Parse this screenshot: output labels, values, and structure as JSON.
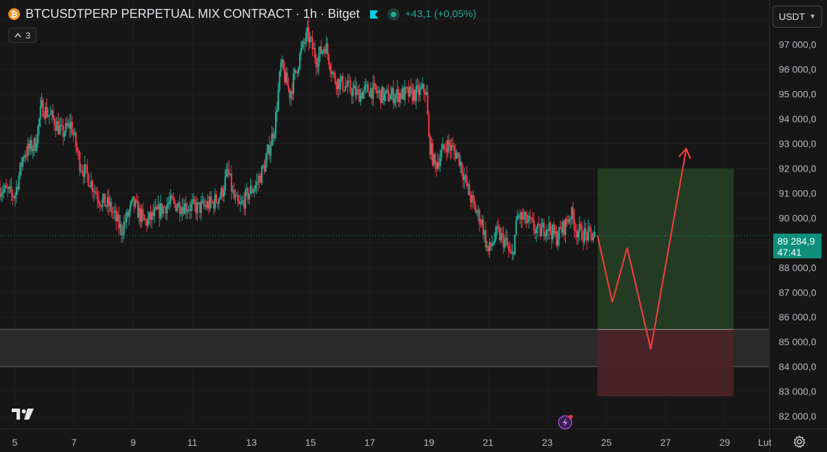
{
  "header": {
    "coin_glyph": "₿",
    "title": "BTCUSDTPERP PERPETUAL MIX CONTRACT · 1h · Bitget",
    "change": "+43,1 (+0,05%)"
  },
  "indicator_badge": {
    "count": "3"
  },
  "currency_select": {
    "value": "USDT"
  },
  "last_price": {
    "price": "89 284,9",
    "countdown": "47:41"
  },
  "x_extra_label": "Lut",
  "colors": {
    "background": "#161616",
    "up": "#22ab94",
    "down": "#f23645",
    "target_zone": "#233d23",
    "stop_zone": "#4a2328",
    "projection": "#ef3e3e",
    "support_band": "#2c2c2c"
  },
  "chart_data": {
    "type": "candlestick",
    "symbol": "BTCUSDTPERP",
    "interval": "1h",
    "exchange": "Bitget",
    "y_range": [
      81500,
      98800
    ],
    "x_range": [
      4.5,
      30.5
    ],
    "y_ticks": [
      82000,
      83000,
      84000,
      85000,
      86000,
      87000,
      88000,
      89000,
      90000,
      91000,
      92000,
      93000,
      94000,
      95000,
      96000,
      97000,
      98000
    ],
    "y_tick_labels": [
      "82 000,0",
      "83 000,0",
      "84 000,0",
      "85 000,0",
      "86 000,0",
      "87 000,0",
      "88 000,0",
      "",
      "90 000,0",
      "91 000,0",
      "92 000,0",
      "93 000,0",
      "94 000,0",
      "95 000,0",
      "96 000,0",
      "97 000,0",
      "98 000,0"
    ],
    "x_ticks": [
      5,
      7,
      9,
      11,
      13,
      15,
      17,
      19,
      21,
      23,
      25,
      27,
      29
    ],
    "x_tick_labels": [
      "5",
      "7",
      "9",
      "11",
      "13",
      "15",
      "17",
      "19",
      "21",
      "23",
      "25",
      "27",
      "29"
    ],
    "last_price": 89284.9,
    "price_path": [
      [
        4.5,
        91200
      ],
      [
        5.0,
        90900
      ],
      [
        5.3,
        92600
      ],
      [
        5.7,
        93000
      ],
      [
        5.9,
        94500
      ],
      [
        6.3,
        94000
      ],
      [
        6.6,
        93400
      ],
      [
        6.9,
        93800
      ],
      [
        7.2,
        92200
      ],
      [
        7.5,
        91600
      ],
      [
        7.9,
        90700
      ],
      [
        8.2,
        90500
      ],
      [
        8.6,
        89500
      ],
      [
        9.0,
        90600
      ],
      [
        9.4,
        89800
      ],
      [
        9.8,
        90200
      ],
      [
        10.2,
        90600
      ],
      [
        10.7,
        90500
      ],
      [
        11.2,
        90400
      ],
      [
        11.7,
        90600
      ],
      [
        12.0,
        91000
      ],
      [
        12.2,
        91900
      ],
      [
        12.4,
        90800
      ],
      [
        12.6,
        90400
      ],
      [
        12.9,
        91000
      ],
      [
        13.2,
        91400
      ],
      [
        13.5,
        92300
      ],
      [
        13.8,
        93800
      ],
      [
        14.0,
        96200
      ],
      [
        14.3,
        95000
      ],
      [
        14.7,
        96800
      ],
      [
        14.9,
        97400
      ],
      [
        15.2,
        96400
      ],
      [
        15.5,
        97000
      ],
      [
        15.8,
        95600
      ],
      [
        16.2,
        95300
      ],
      [
        16.6,
        95000
      ],
      [
        17.0,
        95200
      ],
      [
        17.5,
        94900
      ],
      [
        18.0,
        95000
      ],
      [
        18.5,
        95000
      ],
      [
        18.9,
        95200
      ],
      [
        19.0,
        93100
      ],
      [
        19.2,
        92100
      ],
      [
        19.6,
        93000
      ],
      [
        20.0,
        92500
      ],
      [
        20.3,
        91200
      ],
      [
        20.5,
        90500
      ],
      [
        20.8,
        89800
      ],
      [
        21.0,
        88600
      ],
      [
        21.3,
        89400
      ],
      [
        21.6,
        89000
      ],
      [
        21.8,
        88300
      ],
      [
        22.0,
        90100
      ],
      [
        22.4,
        89800
      ],
      [
        22.7,
        89400
      ],
      [
        23.0,
        89700
      ],
      [
        23.3,
        89200
      ],
      [
        23.6,
        89700
      ],
      [
        23.8,
        90200
      ],
      [
        24.0,
        89500
      ],
      [
        24.3,
        89300
      ],
      [
        24.6,
        89300
      ]
    ],
    "price_path_seed": 7,
    "support_band": [
      84000,
      85500
    ],
    "long_position": {
      "x_start": 24.7,
      "x_end": 29.3,
      "entry": 85500,
      "target": 92000,
      "stop": 82800
    },
    "projection_path": [
      [
        24.7,
        89300
      ],
      [
        25.2,
        86600
      ],
      [
        25.7,
        88800
      ],
      [
        26.5,
        84700
      ],
      [
        27.7,
        92800
      ]
    ]
  }
}
